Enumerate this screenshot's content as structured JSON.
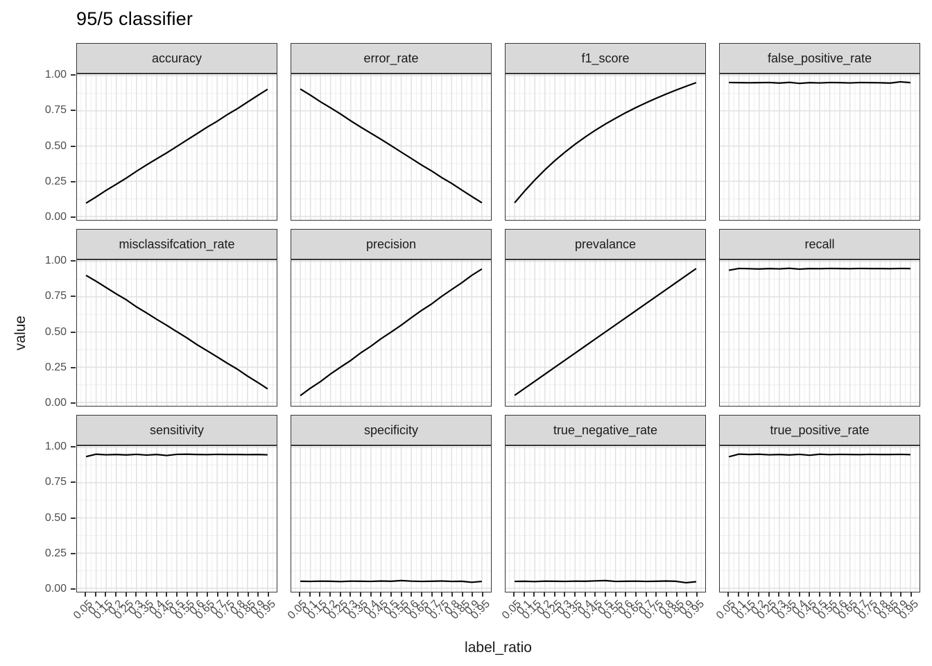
{
  "title": "95/5 classifier",
  "x_axis": {
    "title": "label_ratio",
    "tick_values": [
      0.05,
      0.1,
      0.15,
      0.2,
      0.25,
      0.3,
      0.35,
      0.4,
      0.45,
      0.5,
      0.55,
      0.6,
      0.65,
      0.7,
      0.75,
      0.8,
      0.85,
      0.9,
      0.95
    ],
    "tick_labels": [
      "0.05",
      "0.1",
      "0.15",
      "0.2",
      "0.25",
      "0.3",
      "0.35",
      "0.4",
      "0.45",
      "0.5",
      "0.55",
      "0.6",
      "0.65",
      "0.7",
      "0.75",
      "0.8",
      "0.85",
      "0.9",
      "0.95"
    ]
  },
  "y_axis": {
    "title": "value",
    "tick_values": [
      1.0,
      0.75,
      0.5,
      0.25,
      0.0
    ],
    "tick_labels": [
      "1.00",
      "0.75",
      "0.50",
      "0.25",
      "0.00"
    ]
  },
  "colors": {
    "line": "#000000",
    "strip_fill": "#d9d9d9",
    "panel_border": "#363636",
    "grid_major": "#e2e2e2",
    "grid_minor": "#efefef",
    "tick_text": "#4d4d4d",
    "title_text": "#000000"
  },
  "chart_data": {
    "type": "line",
    "title": "95/5 classifier",
    "xlabel": "label_ratio",
    "ylabel": "value",
    "facet_layout": "3x4",
    "legend": "none",
    "grid": true,
    "xlim": [
      0.05,
      0.95
    ],
    "ylim": [
      0,
      1
    ],
    "y_minor_breaks": [
      0.125,
      0.375,
      0.625,
      0.875
    ],
    "x": [
      0.05,
      0.1,
      0.15,
      0.2,
      0.25,
      0.3,
      0.35,
      0.4,
      0.45,
      0.5,
      0.55,
      0.6,
      0.65,
      0.7,
      0.75,
      0.8,
      0.85,
      0.9,
      0.95
    ],
    "facets": [
      {
        "label": "accuracy",
        "values": [
          0.095,
          0.139,
          0.186,
          0.229,
          0.273,
          0.321,
          0.366,
          0.409,
          0.452,
          0.497,
          0.543,
          0.588,
          0.634,
          0.676,
          0.723,
          0.765,
          0.812,
          0.858,
          0.903
        ]
      },
      {
        "label": "error_rate",
        "values": [
          0.905,
          0.861,
          0.814,
          0.771,
          0.727,
          0.679,
          0.634,
          0.591,
          0.548,
          0.503,
          0.457,
          0.412,
          0.366,
          0.324,
          0.277,
          0.235,
          0.188,
          0.142,
          0.097
        ]
      },
      {
        "label": "f1_score",
        "values": [
          0.097,
          0.181,
          0.259,
          0.331,
          0.397,
          0.457,
          0.513,
          0.564,
          0.612,
          0.656,
          0.697,
          0.736,
          0.772,
          0.806,
          0.838,
          0.868,
          0.897,
          0.924,
          0.95
        ]
      },
      {
        "label": "false_positive_rate",
        "values": [
          0.951,
          0.95,
          0.949,
          0.95,
          0.951,
          0.947,
          0.952,
          0.945,
          0.95,
          0.948,
          0.951,
          0.95,
          0.948,
          0.951,
          0.95,
          0.949,
          0.947,
          0.956,
          0.95
        ]
      },
      {
        "label": "misclassifcation_rate",
        "values": [
          0.902,
          0.86,
          0.815,
          0.77,
          0.728,
          0.678,
          0.635,
          0.59,
          0.547,
          0.502,
          0.458,
          0.41,
          0.367,
          0.323,
          0.278,
          0.236,
          0.187,
          0.143,
          0.096
        ]
      },
      {
        "label": "precision",
        "values": [
          0.048,
          0.101,
          0.148,
          0.202,
          0.251,
          0.298,
          0.352,
          0.399,
          0.452,
          0.499,
          0.548,
          0.601,
          0.652,
          0.698,
          0.752,
          0.801,
          0.849,
          0.902,
          0.947
        ]
      },
      {
        "label": "prevalance",
        "values": [
          0.05,
          0.1,
          0.15,
          0.2,
          0.25,
          0.3,
          0.35,
          0.4,
          0.45,
          0.5,
          0.55,
          0.6,
          0.65,
          0.7,
          0.75,
          0.8,
          0.85,
          0.9,
          0.95
        ]
      },
      {
        "label": "recall",
        "values": [
          0.938,
          0.951,
          0.949,
          0.947,
          0.95,
          0.948,
          0.952,
          0.946,
          0.95,
          0.949,
          0.951,
          0.95,
          0.949,
          0.951,
          0.95,
          0.95,
          0.949,
          0.951,
          0.95
        ]
      },
      {
        "label": "sensitivity",
        "values": [
          0.935,
          0.952,
          0.948,
          0.95,
          0.947,
          0.951,
          0.946,
          0.95,
          0.943,
          0.951,
          0.952,
          0.95,
          0.949,
          0.951,
          0.95,
          0.95,
          0.949,
          0.95,
          0.948
        ]
      },
      {
        "label": "specificity",
        "values": [
          0.05,
          0.049,
          0.051,
          0.05,
          0.048,
          0.051,
          0.05,
          0.049,
          0.052,
          0.05,
          0.055,
          0.051,
          0.049,
          0.05,
          0.052,
          0.049,
          0.05,
          0.043,
          0.049
        ]
      },
      {
        "label": "true_negative_rate",
        "values": [
          0.049,
          0.05,
          0.048,
          0.051,
          0.05,
          0.049,
          0.051,
          0.05,
          0.053,
          0.055,
          0.049,
          0.05,
          0.051,
          0.049,
          0.05,
          0.052,
          0.05,
          0.04,
          0.047
        ]
      },
      {
        "label": "true_positive_rate",
        "values": [
          0.934,
          0.953,
          0.95,
          0.952,
          0.948,
          0.95,
          0.947,
          0.951,
          0.945,
          0.952,
          0.949,
          0.951,
          0.95,
          0.949,
          0.951,
          0.95,
          0.95,
          0.951,
          0.949
        ]
      }
    ]
  }
}
